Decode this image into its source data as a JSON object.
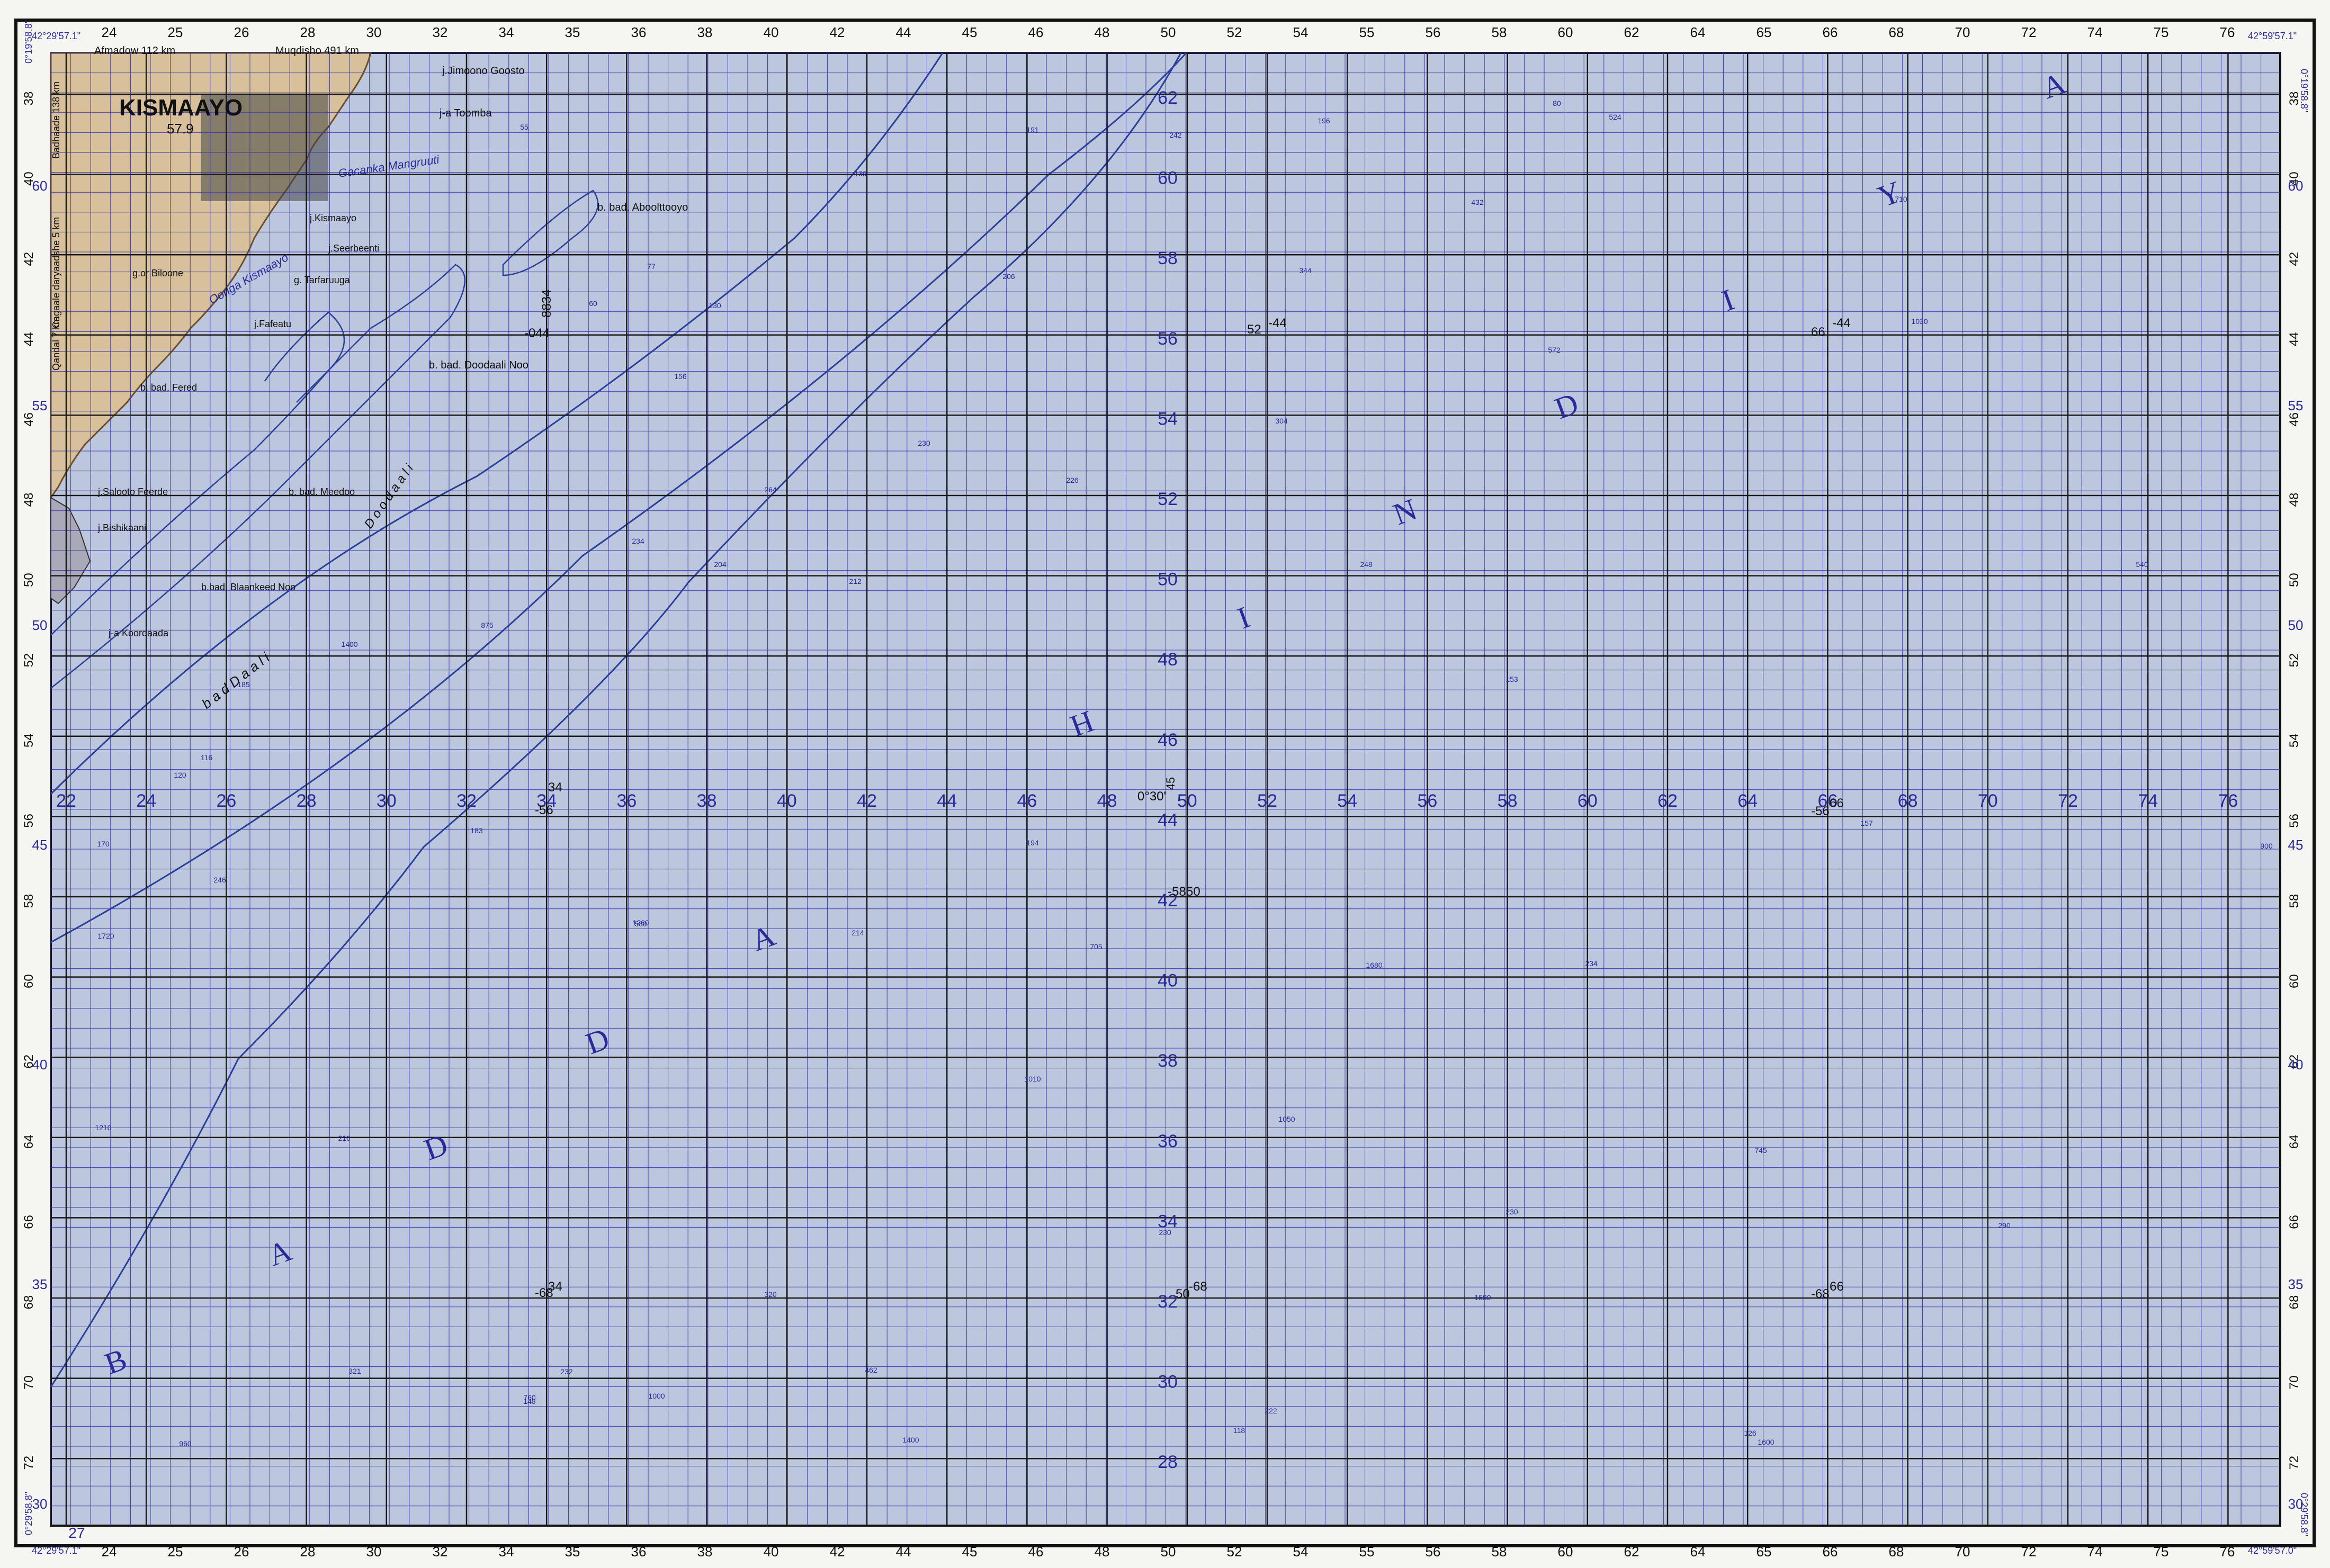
{
  "map": {
    "colors": {
      "sea": "#bcc6dd",
      "land": "#d7c09a",
      "grid_blue": "#3b3ba8",
      "grid_black": "#1a1a1a",
      "contour": "#2a3f9a",
      "label_blue": "#2a2a9a"
    },
    "corners": {
      "top_left_lon": "42°29'57.1\"",
      "top_left_lat": "0°19'58.8\"",
      "top_right_lon": "42°59'57.1\"",
      "top_right_lat": "0°19'58.8\"",
      "bottom_left_lon": "42°29'57.1\"",
      "bottom_left_lat": "0°29'58.8\"",
      "bottom_right_lon": "42°59'57.0\"",
      "bottom_right_lat": "0°29'58.8\""
    },
    "sea_name_letters": [
      "B",
      "A",
      "D",
      "D",
      "A",
      "H",
      "I",
      "N",
      "D",
      "I",
      "Y",
      "A"
    ],
    "center_mark": "0°30'",
    "center_mark_45": "45",
    "easting_row": [
      "22",
      "24",
      "26",
      "28",
      "30",
      "32",
      "34",
      "36",
      "38",
      "40",
      "42",
      "44",
      "46",
      "48",
      "50",
      "52",
      "54",
      "56",
      "58",
      "60",
      "62",
      "64",
      "66",
      "68",
      "70",
      "72",
      "74",
      "76"
    ],
    "northing_col": [
      "62",
      "60",
      "58",
      "56",
      "54",
      "52",
      "50",
      "48",
      "46",
      "44",
      "42",
      "40",
      "38",
      "36",
      "34",
      "32",
      "30",
      "28"
    ],
    "top_ticks": [
      "24",
      "25",
      "26",
      "28",
      "30",
      "32",
      "34",
      "35",
      "36",
      "38",
      "40",
      "42",
      "44",
      "45",
      "46",
      "48",
      "50",
      "52",
      "54",
      "55",
      "56",
      "58",
      "60",
      "62",
      "64",
      "65",
      "66",
      "68",
      "70",
      "72",
      "74",
      "75",
      "76"
    ],
    "left_ticks": [
      "38",
      "40",
      "42",
      "44",
      "46",
      "48",
      "50",
      "52",
      "54",
      "56",
      "58",
      "60",
      "62",
      "64",
      "66",
      "68",
      "70",
      "72"
    ],
    "purple_side_left": [
      "60",
      "55",
      "50",
      "45",
      "40",
      "35",
      "30"
    ],
    "purple_side_right": [
      "60",
      "55",
      "50",
      "45",
      "40",
      "35",
      "30"
    ],
    "bottom_corner_left": "27",
    "places": {
      "city": "KISMAAYO",
      "city_elev": "57.9",
      "afmadow": "Afmadow 112 km",
      "muqdisho": "Muqdisho 491 km",
      "badhaade": "Badhaade 138 km",
      "cagaale": "Cagaale daryaadshe 5 km",
      "qandal": "Qandal 7 km",
      "jimoono": "j.Jimoono Goosto",
      "toomba": "j-a Toomba",
      "kismaayo_small": "j.Kismaayo",
      "seerbeenti": "j.Seerbeenti",
      "tarfaruuga": "g. Tarfaruuga",
      "fafeatu": "j.Fafeatu",
      "biloone": "g.or Biloone",
      "fered": "b. bad. Fered",
      "salooto": "j.Salooto Feerde",
      "bishikaani": "j.Bishikaani",
      "meedoo": "b. bad. Meedoo",
      "blaankeed": "b.bad. Blaankeed Noo",
      "koordaada": "j-a Koordaada",
      "doodaali": "b. bad. Doodaali Noo",
      "aboolttooyo": "b. bad. Aboolttooyo",
      "gacanka": "Gacanka Mangruuti",
      "ooriga": "Ooriga Kismaayo",
      "badaal": "b a d  D a a l i",
      "doodaali_italic": "D o o d a a l i"
    },
    "heights": [
      "-044",
      "8834",
      "-56",
      "34",
      "-68",
      "34",
      "52",
      "-44",
      "66",
      "-44",
      "50",
      "-58",
      "50",
      "-68",
      "-56",
      "66",
      "-68",
      "66"
    ],
    "soundings": [
      "196",
      "524",
      "710",
      "432",
      "242",
      "139",
      "191",
      "206",
      "344",
      "130",
      "1030",
      "572",
      "156",
      "230",
      "304",
      "226",
      "264",
      "234",
      "204",
      "212",
      "248",
      "540",
      "875",
      "1400",
      "185",
      "153",
      "157",
      "183",
      "194",
      "900",
      "1260",
      "214",
      "705",
      "1680",
      "234",
      "580",
      "1010",
      "1050",
      "216",
      "230",
      "745",
      "230",
      "290",
      "320",
      "1000",
      "1580",
      "1400",
      "1600",
      "960",
      "321",
      "462",
      "760",
      "222",
      "232",
      "1210",
      "1720",
      "246",
      "170",
      "120",
      "148",
      "118",
      "126",
      "116",
      "55",
      "60",
      "77",
      "80"
    ]
  }
}
